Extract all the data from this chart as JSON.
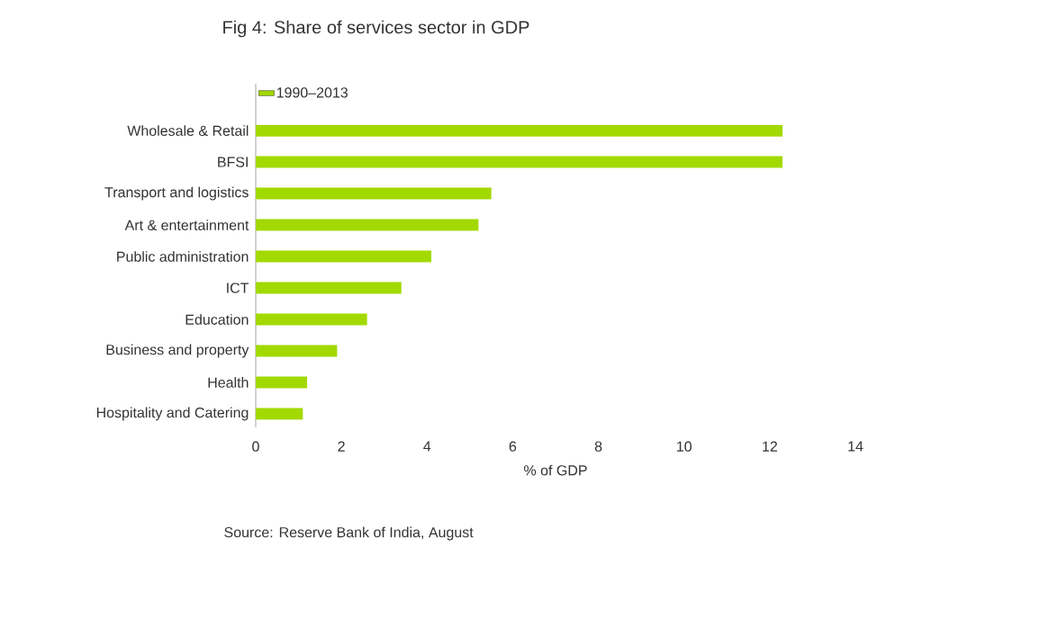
{
  "chart_data": {
    "type": "bar",
    "orientation": "horizontal",
    "title": "Fig 4: Share of services sector in GDP",
    "xlabel": "% of GDP",
    "categories": [
      "Wholesale & Retail",
      "BFSI",
      "Transport and logistics",
      "Art & entertainment",
      "Public administration",
      "ICT",
      "Education",
      "Business and property",
      "Health",
      "Hospitality and Catering"
    ],
    "series": [
      {
        "name": "1990–2013",
        "color": "#a2d900",
        "values": [
          12.3,
          12.3,
          5.5,
          5.2,
          4.1,
          3.4,
          2.6,
          1.9,
          1.2,
          1.1
        ]
      }
    ],
    "xlim": [
      0,
      14
    ],
    "xticks": [
      0,
      2,
      4,
      6,
      8,
      10,
      12,
      14
    ],
    "legend": "top left",
    "annotations": [
      "Source: Reserve Bank of India, August"
    ]
  }
}
